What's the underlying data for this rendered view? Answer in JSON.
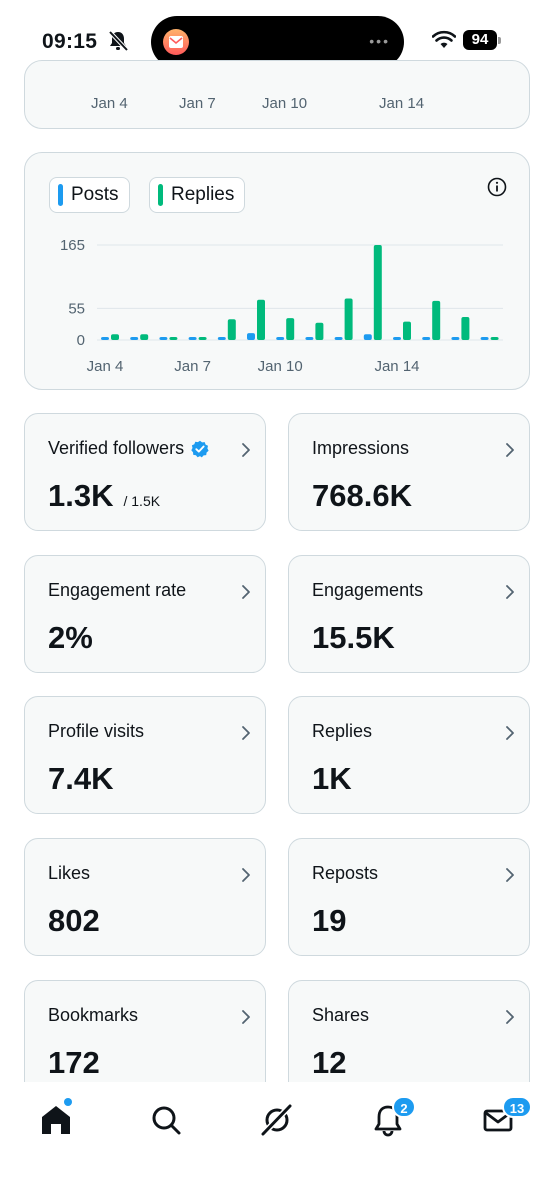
{
  "status_bar": {
    "time": "09:15",
    "battery": "94"
  },
  "top_card": {
    "x_labels": [
      "Jan 4",
      "Jan 7",
      "Jan 10",
      "Jan 14"
    ]
  },
  "chart": {
    "legend": [
      {
        "label": "Posts",
        "color": "#1d9bf0"
      },
      {
        "label": "Replies",
        "color": "#00ba7c"
      }
    ]
  },
  "chart_data": {
    "type": "bar",
    "categories": [
      "Jan 4",
      "Jan 5",
      "Jan 6",
      "Jan 7",
      "Jan 8",
      "Jan 9",
      "Jan 10",
      "Jan 11",
      "Jan 12",
      "Jan 13",
      "Jan 14",
      "Jan 15",
      "Jan 16",
      "Jan 17"
    ],
    "series": [
      {
        "name": "Posts",
        "values": [
          2,
          0,
          0,
          0,
          5,
          12,
          2,
          2,
          2,
          10,
          2,
          2,
          2,
          2
        ]
      },
      {
        "name": "Replies",
        "values": [
          10,
          10,
          2,
          2,
          36,
          70,
          38,
          30,
          72,
          165,
          32,
          68,
          40,
          5
        ]
      }
    ],
    "yticks": [
      0,
      55,
      165
    ],
    "ylim": [
      0,
      165
    ],
    "xtick_labels": [
      "Jan 4",
      "Jan 7",
      "Jan 10",
      "Jan 14"
    ],
    "grid": true,
    "legend_position": "top-left"
  },
  "metrics": [
    {
      "label": "Verified followers",
      "value": "1.3K",
      "sub": "/ 1.5K",
      "verified": true
    },
    {
      "label": "Impressions",
      "value": "768.6K"
    },
    {
      "label": "Engagement rate",
      "value": "2%"
    },
    {
      "label": "Engagements",
      "value": "15.5K"
    },
    {
      "label": "Profile visits",
      "value": "7.4K"
    },
    {
      "label": "Replies",
      "value": "1K"
    },
    {
      "label": "Likes",
      "value": "802"
    },
    {
      "label": "Reposts",
      "value": "19"
    },
    {
      "label": "Bookmarks",
      "value": "172"
    },
    {
      "label": "Shares",
      "value": "12"
    }
  ],
  "nav": {
    "notifications_badge": "2",
    "messages_badge": "13"
  },
  "colors": {
    "accent": "#1d9bf0",
    "green": "#00ba7c",
    "border": "#cfd9de",
    "card_bg": "#f7f9f9"
  }
}
